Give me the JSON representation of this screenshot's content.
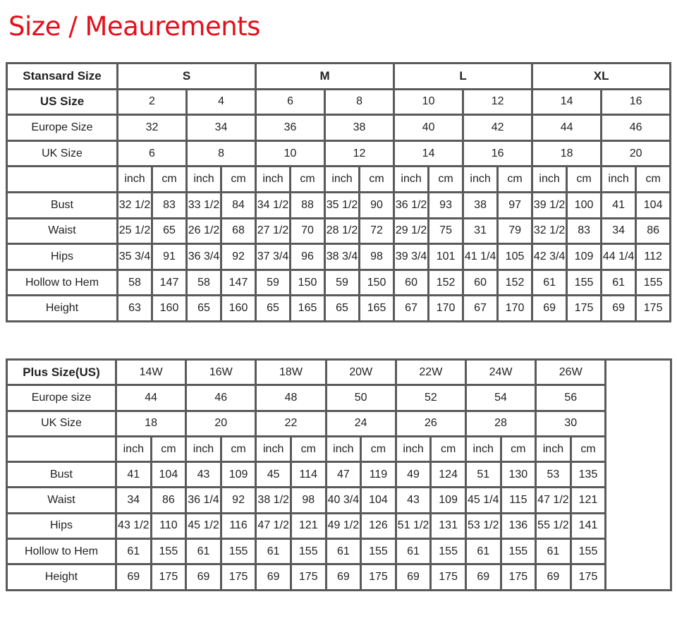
{
  "title": "Size / Meaurements",
  "standard_table": {
    "header_label": "Stansard Size",
    "groups": [
      "S",
      "M",
      "L",
      "XL"
    ],
    "size_rows": [
      {
        "label": "US Size",
        "values": [
          "2",
          "4",
          "6",
          "8",
          "10",
          "12",
          "14",
          "16"
        ]
      },
      {
        "label": "Europe Size",
        "values": [
          "32",
          "34",
          "36",
          "38",
          "40",
          "42",
          "44",
          "46"
        ]
      },
      {
        "label": "UK Size",
        "values": [
          "6",
          "8",
          "10",
          "12",
          "14",
          "16",
          "18",
          "20"
        ]
      }
    ],
    "units": [
      "inch",
      "cm"
    ],
    "measurements": [
      {
        "label": "Bust",
        "values": [
          "32 1/2",
          "83",
          "33 1/2",
          "84",
          "34 1/2",
          "88",
          "35 1/2",
          "90",
          "36 1/2",
          "93",
          "38",
          "97",
          "39 1/2",
          "100",
          "41",
          "104"
        ]
      },
      {
        "label": "Waist",
        "values": [
          "25 1/2",
          "65",
          "26 1/2",
          "68",
          "27 1/2",
          "70",
          "28 1/2",
          "72",
          "29 1/2",
          "75",
          "31",
          "79",
          "32 1/2",
          "83",
          "34",
          "86"
        ]
      },
      {
        "label": "Hips",
        "values": [
          "35 3/4",
          "91",
          "36 3/4",
          "92",
          "37 3/4",
          "96",
          "38 3/4",
          "98",
          "39 3/4",
          "101",
          "41 1/4",
          "105",
          "42 3/4",
          "109",
          "44 1/4",
          "112"
        ]
      },
      {
        "label": "Hollow to Hem",
        "values": [
          "58",
          "147",
          "58",
          "147",
          "59",
          "150",
          "59",
          "150",
          "60",
          "152",
          "60",
          "152",
          "61",
          "155",
          "61",
          "155"
        ]
      },
      {
        "label": "Height",
        "values": [
          "63",
          "160",
          "65",
          "160",
          "65",
          "165",
          "65",
          "165",
          "67",
          "170",
          "67",
          "170",
          "69",
          "175",
          "69",
          "175"
        ]
      }
    ]
  },
  "plus_table": {
    "header_label": "Plus Size(US)",
    "sizes": [
      "14W",
      "16W",
      "18W",
      "20W",
      "22W",
      "24W",
      "26W"
    ],
    "size_rows": [
      {
        "label": "Europe size",
        "values": [
          "44",
          "46",
          "48",
          "50",
          "52",
          "54",
          "56"
        ]
      },
      {
        "label": "UK Size",
        "values": [
          "18",
          "20",
          "22",
          "24",
          "26",
          "28",
          "30"
        ]
      }
    ],
    "units": [
      "inch",
      "cm"
    ],
    "measurements": [
      {
        "label": "Bust",
        "values": [
          "41",
          "104",
          "43",
          "109",
          "45",
          "114",
          "47",
          "119",
          "49",
          "124",
          "51",
          "130",
          "53",
          "135"
        ]
      },
      {
        "label": "Waist",
        "values": [
          "34",
          "86",
          "36 1/4",
          "92",
          "38 1/2",
          "98",
          "40 3/4",
          "104",
          "43",
          "109",
          "45 1/4",
          "115",
          "47 1/2",
          "121"
        ]
      },
      {
        "label": "Hips",
        "values": [
          "43 1/2",
          "110",
          "45 1/2",
          "116",
          "47 1/2",
          "121",
          "49 1/2",
          "126",
          "51 1/2",
          "131",
          "53 1/2",
          "136",
          "55 1/2",
          "141"
        ]
      },
      {
        "label": "Hollow to Hem",
        "values": [
          "61",
          "155",
          "61",
          "155",
          "61",
          "155",
          "61",
          "155",
          "61",
          "155",
          "61",
          "155",
          "61",
          "155"
        ]
      },
      {
        "label": "Height",
        "values": [
          "69",
          "175",
          "69",
          "175",
          "69",
          "175",
          "69",
          "175",
          "69",
          "175",
          "69",
          "175",
          "69",
          "175"
        ]
      }
    ]
  },
  "colors": {
    "title": "#e3101b",
    "grid": "#5a5a5a"
  }
}
